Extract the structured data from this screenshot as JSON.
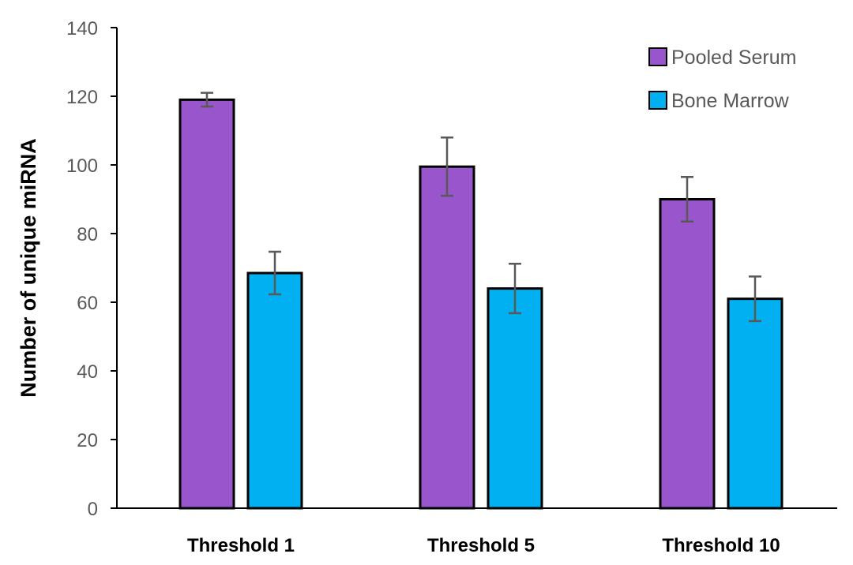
{
  "chart_data": {
    "type": "bar",
    "categories": [
      "Threshold 1",
      "Threshold 5",
      "Threshold 10"
    ],
    "series": [
      {
        "name": "Pooled Serum",
        "color": "#9955CC",
        "values": [
          119,
          99.5,
          90
        ],
        "errors": [
          2,
          8.5,
          6.5
        ]
      },
      {
        "name": "Bone Marrow",
        "color": "#00B0F0",
        "values": [
          68.5,
          64,
          61
        ],
        "errors": [
          6.2,
          7.2,
          6.5
        ]
      }
    ],
    "title": "",
    "xlabel": "",
    "ylabel": "Number of unique miRNA",
    "ylim": [
      0,
      140
    ],
    "yticks": [
      0,
      20,
      40,
      60,
      80,
      100,
      120,
      140
    ],
    "grid": false,
    "legend_position": "top-right"
  }
}
